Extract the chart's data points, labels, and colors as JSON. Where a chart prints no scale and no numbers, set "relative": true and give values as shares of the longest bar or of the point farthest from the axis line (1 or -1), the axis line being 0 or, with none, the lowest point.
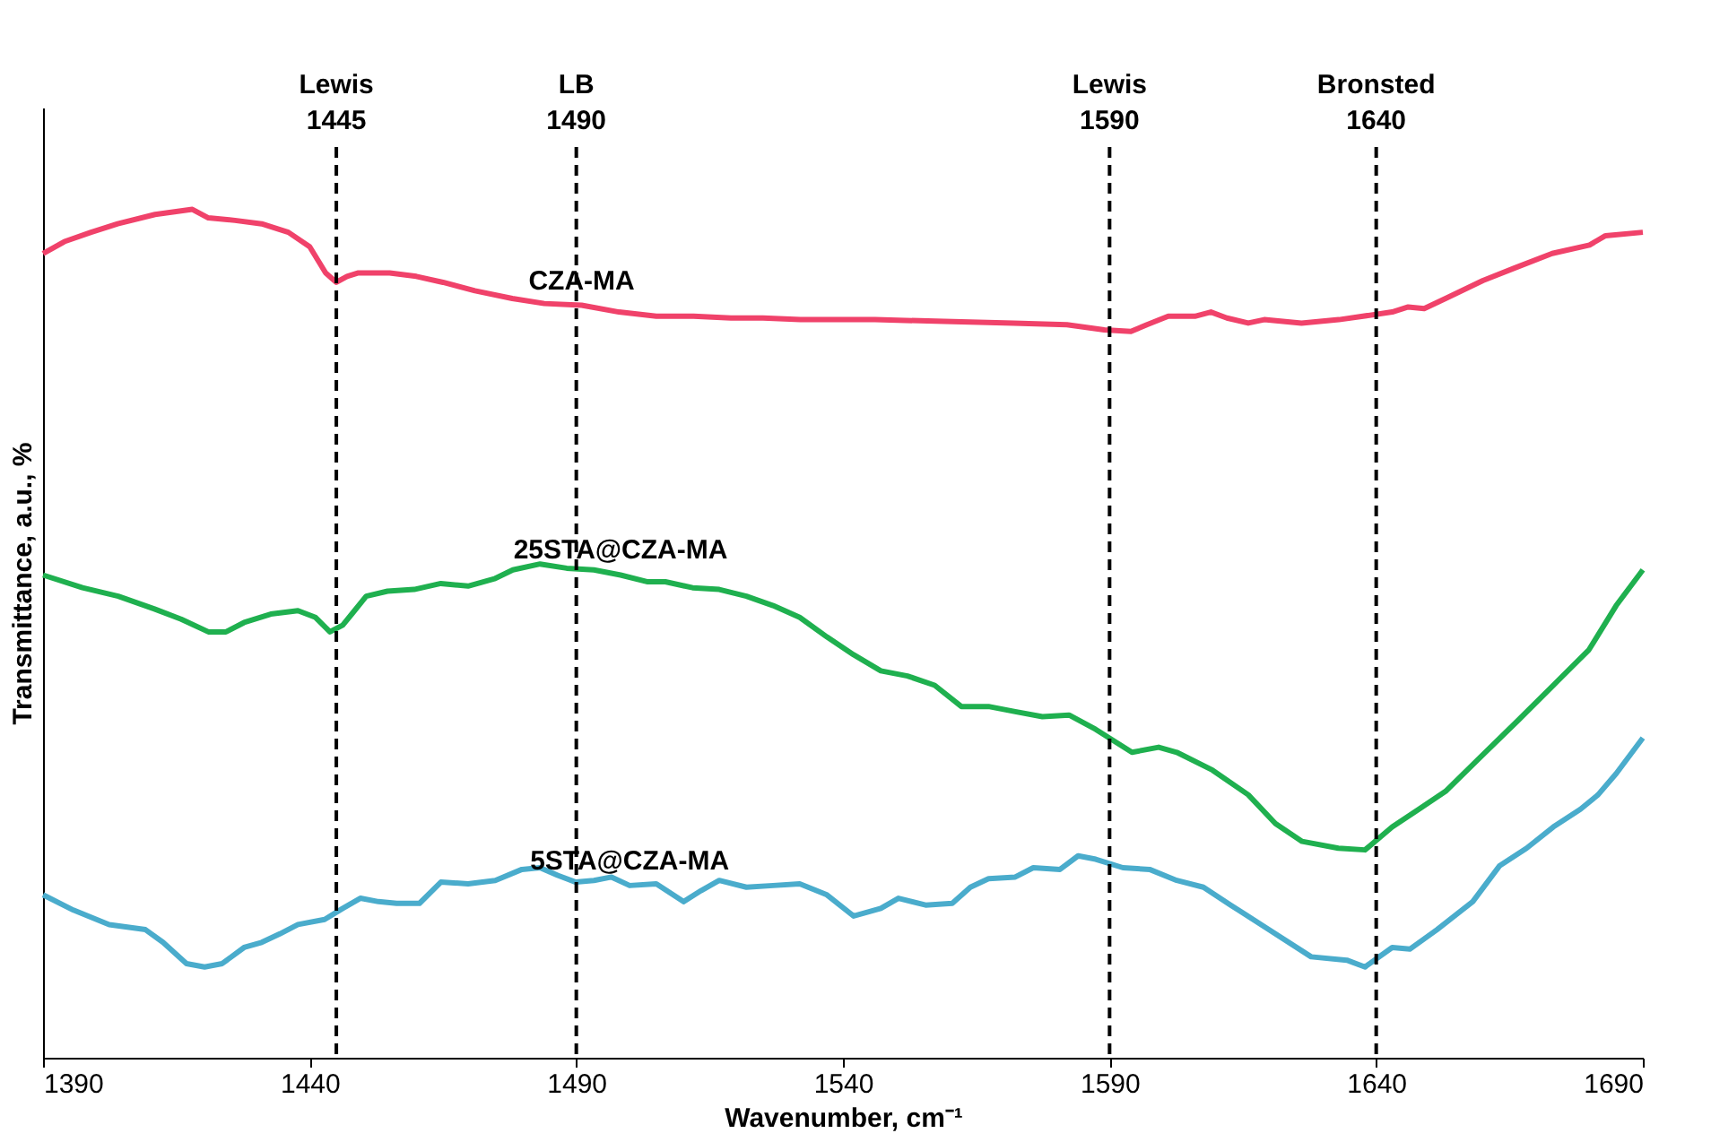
{
  "chart_data": {
    "type": "line",
    "relative": true,
    "xlabel": "Wavenumber, cm⁻¹",
    "ylabel": "Transmittance, a.u., %",
    "xlim": [
      1390,
      1690
    ],
    "xticks": [
      1390,
      1440,
      1490,
      1540,
      1590,
      1640,
      1690
    ],
    "grid": false,
    "legend": false,
    "marker": "none",
    "line_style": "solid",
    "series": [
      {
        "name": "CZA-MA",
        "color": "#f0426a",
        "x": [
          1390,
          1394,
          1399,
          1404,
          1411,
          1418,
          1421,
          1426,
          1431,
          1436,
          1440,
          1443,
          1445,
          1447,
          1449,
          1455,
          1460,
          1465,
          1471,
          1478,
          1484,
          1491,
          1498,
          1505,
          1512,
          1519,
          1525,
          1532,
          1546,
          1559,
          1572,
          1582,
          1589,
          1594,
          1597,
          1601,
          1606,
          1609,
          1612,
          1616,
          1619,
          1626,
          1633,
          1643,
          1646,
          1649,
          1653,
          1660,
          1666,
          1673,
          1680,
          1683,
          1690
        ],
        "values": [
          0.948,
          0.962,
          0.973,
          0.983,
          0.994,
          1.0,
          0.99,
          0.987,
          0.983,
          0.973,
          0.956,
          0.925,
          0.914,
          0.921,
          0.925,
          0.925,
          0.921,
          0.914,
          0.904,
          0.895,
          0.889,
          0.887,
          0.879,
          0.874,
          0.874,
          0.872,
          0.872,
          0.87,
          0.87,
          0.868,
          0.866,
          0.864,
          0.858,
          0.856,
          0.864,
          0.874,
          0.874,
          0.879,
          0.872,
          0.866,
          0.87,
          0.866,
          0.87,
          0.879,
          0.885,
          0.883,
          0.895,
          0.916,
          0.931,
          0.948,
          0.958,
          0.969,
          0.973
        ]
      },
      {
        "name": "25STA@CZA-MA",
        "color": "#1fb04f",
        "x": [
          1390,
          1397.4,
          1404.1,
          1410.9,
          1415.9,
          1421,
          1424.3,
          1427.7,
          1432.7,
          1437.8,
          1441.1,
          1443.8,
          1446.2,
          1447.9,
          1450.6,
          1454.6,
          1459.6,
          1464.6,
          1469.7,
          1474.8,
          1478.1,
          1483.2,
          1488.2,
          1493.3,
          1498.3,
          1503.4,
          1506.7,
          1511.8,
          1516.8,
          1521.9,
          1526.9,
          1531.9,
          1537,
          1542,
          1547.1,
          1552.1,
          1557.2,
          1562.2,
          1567.3,
          1572.3,
          1577.4,
          1582.4,
          1587.4,
          1594.2,
          1599.2,
          1602.6,
          1609.3,
          1616,
          1621.1,
          1626.1,
          1632.9,
          1637.9,
          1643,
          1648,
          1653,
          1659.8,
          1666.5,
          1673.2,
          1679.9,
          1685,
          1690
        ],
        "values": [
          0.569,
          0.554,
          0.544,
          0.529,
          0.517,
          0.502,
          0.502,
          0.513,
          0.523,
          0.527,
          0.519,
          0.502,
          0.51,
          0.523,
          0.544,
          0.55,
          0.552,
          0.559,
          0.556,
          0.565,
          0.575,
          0.582,
          0.577,
          0.575,
          0.569,
          0.561,
          0.561,
          0.554,
          0.552,
          0.544,
          0.533,
          0.519,
          0.496,
          0.475,
          0.456,
          0.45,
          0.439,
          0.414,
          0.414,
          0.408,
          0.402,
          0.404,
          0.387,
          0.36,
          0.366,
          0.36,
          0.339,
          0.31,
          0.276,
          0.255,
          0.247,
          0.245,
          0.272,
          0.293,
          0.314,
          0.356,
          0.397,
          0.439,
          0.481,
          0.533,
          0.575
        ]
      },
      {
        "name": "5STA@CZA-MA",
        "color": "#4aaccc",
        "x": [
          1390,
          1395.7,
          1402.4,
          1409.2,
          1412.5,
          1416.9,
          1420.3,
          1423.6,
          1427.7,
          1431,
          1434.4,
          1437.8,
          1442.8,
          1446.2,
          1449.5,
          1452.9,
          1456.3,
          1460.6,
          1464.6,
          1469.7,
          1474.8,
          1479.8,
          1483.2,
          1486.5,
          1489.9,
          1493.3,
          1496.6,
          1500,
          1505,
          1510.1,
          1513.4,
          1516.8,
          1521.9,
          1526.9,
          1531.9,
          1537,
          1542,
          1547.1,
          1550.4,
          1555.5,
          1560.5,
          1563.9,
          1567.3,
          1572.3,
          1575.7,
          1580.7,
          1584.1,
          1587.4,
          1592.5,
          1597.5,
          1602.6,
          1607.6,
          1612.7,
          1619.4,
          1627.8,
          1634.5,
          1637.9,
          1643,
          1646.3,
          1651.4,
          1658.1,
          1663.1,
          1668.2,
          1673.2,
          1678.3,
          1681.6,
          1685,
          1690
        ],
        "values": [
          0.192,
          0.174,
          0.157,
          0.151,
          0.136,
          0.111,
          0.107,
          0.111,
          0.13,
          0.136,
          0.146,
          0.157,
          0.163,
          0.176,
          0.188,
          0.184,
          0.182,
          0.182,
          0.207,
          0.205,
          0.209,
          0.222,
          0.224,
          0.215,
          0.207,
          0.209,
          0.213,
          0.203,
          0.205,
          0.184,
          0.197,
          0.209,
          0.201,
          0.203,
          0.205,
          0.192,
          0.167,
          0.176,
          0.188,
          0.18,
          0.182,
          0.201,
          0.211,
          0.213,
          0.224,
          0.222,
          0.238,
          0.234,
          0.224,
          0.222,
          0.209,
          0.201,
          0.18,
          0.153,
          0.119,
          0.115,
          0.107,
          0.13,
          0.128,
          0.151,
          0.184,
          0.226,
          0.247,
          0.272,
          0.293,
          0.31,
          0.335,
          0.377
        ]
      }
    ],
    "ref_lines": [
      {
        "axis": "x",
        "value": 1445,
        "label": "Lewis\n1445",
        "color": "#000000",
        "line_style": "dashed"
      },
      {
        "axis": "x",
        "value": 1490,
        "label": "LB\n1490",
        "color": "#000000",
        "line_style": "dashed"
      },
      {
        "axis": "x",
        "value": 1590,
        "label": "Lewis\n1590",
        "color": "#000000",
        "line_style": "dashed"
      },
      {
        "axis": "x",
        "value": 1640,
        "label": "Bronsted\n1640",
        "color": "#000000",
        "line_style": "dashed"
      }
    ]
  }
}
